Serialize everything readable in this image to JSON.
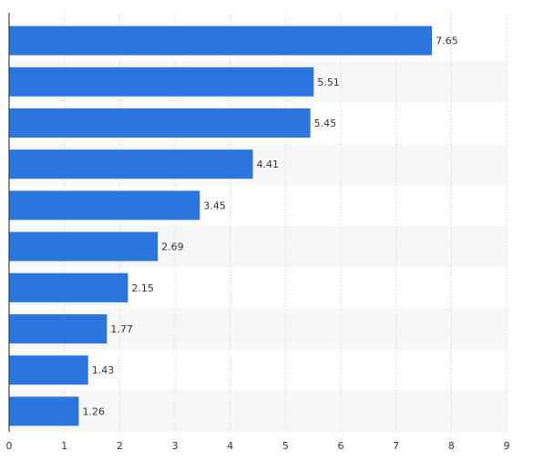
{
  "chart_data": {
    "type": "bar",
    "orientation": "horizontal",
    "categories": [
      "",
      "",
      "",
      "",
      "",
      "",
      "",
      "",
      "",
      ""
    ],
    "values": [
      7.65,
      5.51,
      5.45,
      4.41,
      3.45,
      2.69,
      2.15,
      1.77,
      1.43,
      1.26
    ],
    "value_labels": [
      "7.65",
      "5.51",
      "5.45",
      "4.41",
      "3.45",
      "2.69",
      "2.15",
      "1.77",
      "1.43",
      "1.26"
    ],
    "title": "",
    "xlabel": "",
    "ylabel": "",
    "xlim": [
      0,
      9
    ],
    "x_ticks": [
      "0",
      "1",
      "2",
      "3",
      "4",
      "5",
      "6",
      "7",
      "8",
      "9"
    ],
    "grid": "vertical dotted",
    "legend": "none",
    "colors": {
      "bar": "#2a76dd",
      "band": "#f7f7f7",
      "grid": "#c8c8c8",
      "axis": "#222222",
      "text": "#333333"
    }
  }
}
